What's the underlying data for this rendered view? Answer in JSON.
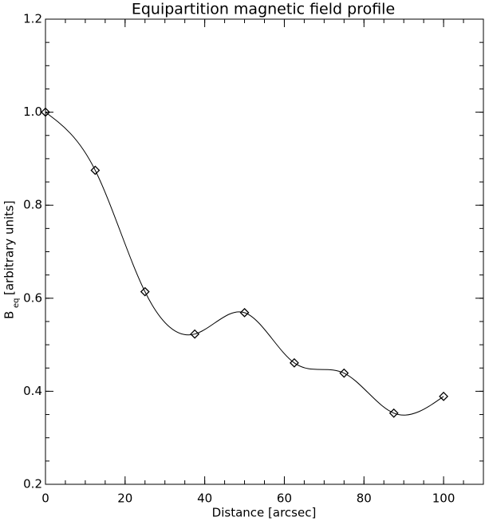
{
  "chart_data": {
    "type": "line",
    "title": "Equipartition magnetic field profile",
    "xlabel": "Distance [arcsec]",
    "ylabel": {
      "main": "B",
      "subscript": "eq",
      "rest": "[arbitrary units]"
    },
    "x": [
      0,
      12.5,
      25,
      37.5,
      50,
      62.5,
      75,
      87.5,
      100
    ],
    "series": [
      {
        "color": "#000000",
        "values": [
          1.0,
          0.875,
          0.614,
          0.523,
          0.569,
          0.461,
          0.439,
          0.353,
          0.389
        ]
      }
    ],
    "xlim": [
      0,
      110
    ],
    "xticks": [
      0,
      20,
      40,
      60,
      80,
      100
    ],
    "ylim": [
      0.2,
      1.2
    ],
    "yticks": [
      0.2,
      0.4,
      0.6,
      0.8,
      {
        "value": 1,
        "label": "1.0"
      },
      1.2
    ],
    "grid": false,
    "smooth": true,
    "markers": "diamond"
  }
}
